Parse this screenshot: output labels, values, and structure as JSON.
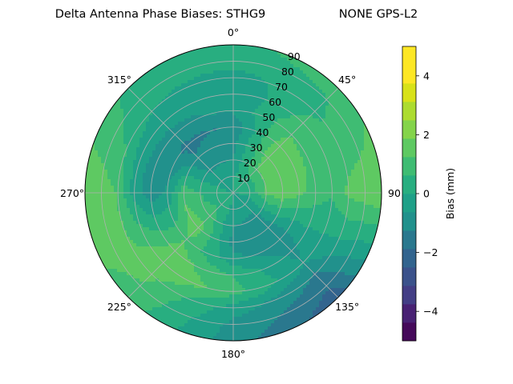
{
  "chart_data": {
    "type": "heatmap",
    "projection": "polar",
    "title": "Delta Antenna Phase Biases: STHG9",
    "subtitle": "NONE GPS-L2",
    "theta_labels": [
      "0°",
      "45°",
      "90",
      "135°",
      "180°",
      "225°",
      "270°",
      "315°"
    ],
    "radial_labels": [
      "10",
      "20",
      "30",
      "40",
      "50",
      "60",
      "70",
      "80",
      "90"
    ],
    "radial_range": [
      0,
      90
    ],
    "grid": true,
    "colorbar": {
      "label": "Bias (mm)",
      "ticks": [
        "−4",
        "−2",
        "0",
        "2",
        "4"
      ],
      "range": [
        -5,
        5
      ],
      "levels": [
        -5,
        -4.375,
        -3.75,
        -3.125,
        -2.5,
        -1.875,
        -1.25,
        -0.625,
        0,
        0.625,
        1.25,
        1.875,
        2.5,
        3.125,
        3.75,
        4.375,
        5
      ],
      "colors": [
        "#45095a",
        "#482173",
        "#433e85",
        "#3b528b",
        "#32648e",
        "#2a788e",
        "#21918c",
        "#1fa088",
        "#28ae80",
        "#3fbc73",
        "#5ec962",
        "#84d44b",
        "#addc30",
        "#d8e219",
        "#fde725",
        "#fde725"
      ]
    },
    "bias_field_mm": {
      "elevation_deg": [
        10,
        20,
        30,
        40,
        50,
        60,
        70,
        80,
        90
      ],
      "azimuth_deg": [
        0,
        45,
        90,
        135,
        180,
        225,
        270,
        315
      ],
      "values": [
        [
          0.0,
          0.3,
          0.1,
          -0.3,
          -0.2,
          0.5,
          0.2,
          -0.2
        ],
        [
          -0.6,
          1.2,
          1.4,
          -0.8,
          -0.6,
          1.0,
          0.6,
          -0.8
        ],
        [
          -0.8,
          1.6,
          1.8,
          -1.1,
          -0.9,
          1.6,
          1.1,
          -1.2
        ],
        [
          -1.2,
          1.6,
          1.4,
          -1.2,
          -0.4,
          1.2,
          -0.5,
          -1.4
        ],
        [
          -0.5,
          1.2,
          1.0,
          -0.8,
          0.6,
          1.6,
          -1.0,
          -0.8
        ],
        [
          -0.6,
          0.8,
          0.7,
          -0.6,
          0.9,
          1.9,
          -0.3,
          -0.4
        ],
        [
          -0.3,
          0.5,
          1.4,
          -1.3,
          -0.3,
          1.4,
          1.2,
          0.0
        ],
        [
          0.3,
          0.6,
          1.6,
          -1.8,
          -0.8,
          1.2,
          1.6,
          0.3
        ],
        [
          0.5,
          0.9,
          1.8,
          -2.3,
          -1.0,
          1.0,
          1.8,
          0.5
        ]
      ]
    }
  }
}
